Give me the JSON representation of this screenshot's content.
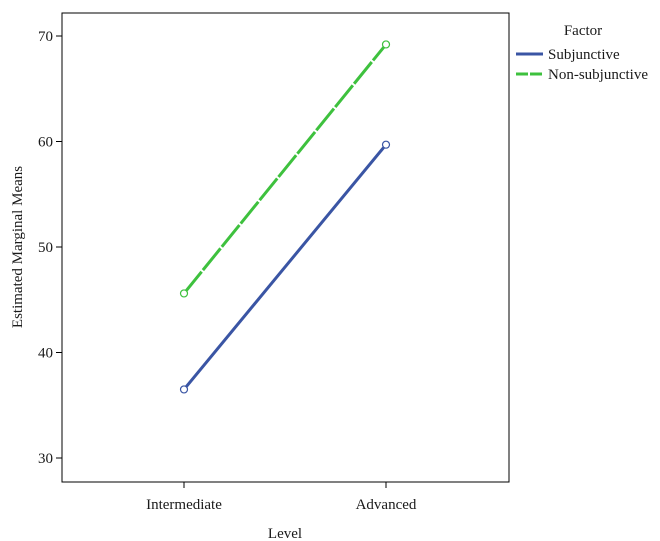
{
  "chart_data": {
    "type": "line",
    "categories": [
      "Intermediate",
      "Advanced"
    ],
    "series": [
      {
        "name": "Subjunctive",
        "values": [
          36.5,
          59.7
        ],
        "color": "#3a55a4",
        "dashed": false
      },
      {
        "name": "Non-subjunctive",
        "values": [
          45.6,
          69.2
        ],
        "color": "#3ec13e",
        "dashed": true
      }
    ],
    "xlabel": "Level",
    "ylabel": "Estimated Marginal Means",
    "ylim": [
      28,
      73
    ],
    "yticks": [
      30,
      40,
      50,
      60,
      70
    ],
    "legend_title": "Factor",
    "legend_position": "right, outside plot",
    "grid": false,
    "markers": "open circles"
  }
}
